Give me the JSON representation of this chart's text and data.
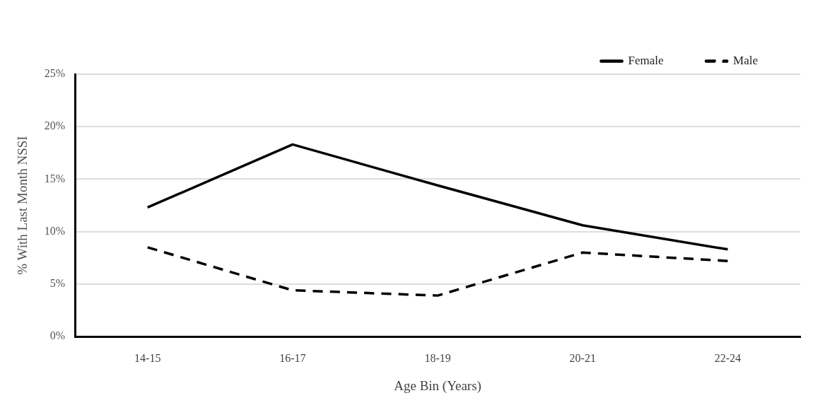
{
  "chart_data": {
    "type": "line",
    "xlabel": "Age Bin (Years)",
    "ylabel": "% With Last Month NSSI",
    "categories": [
      "14-15",
      "16-17",
      "18-19",
      "20-21",
      "22-24"
    ],
    "series": [
      {
        "name": "Female",
        "color": "#000000",
        "line_style": "solid",
        "values": [
          12.3,
          18.3,
          14.4,
          10.6,
          8.3
        ]
      },
      {
        "name": "Male",
        "color": "#000000",
        "line_style": "dashed",
        "values": [
          8.5,
          4.4,
          3.9,
          8.0,
          7.2
        ]
      }
    ],
    "ylim": [
      0,
      25
    ],
    "yticks": [
      {
        "value": 0,
        "label": "0%"
      },
      {
        "value": 5,
        "label": "5%"
      },
      {
        "value": 10,
        "label": "10%"
      },
      {
        "value": 15,
        "label": "15%"
      },
      {
        "value": 20,
        "label": "20%"
      },
      {
        "value": 25,
        "label": "25%"
      }
    ],
    "grid": "y",
    "legend": "top right",
    "marker": "none"
  }
}
